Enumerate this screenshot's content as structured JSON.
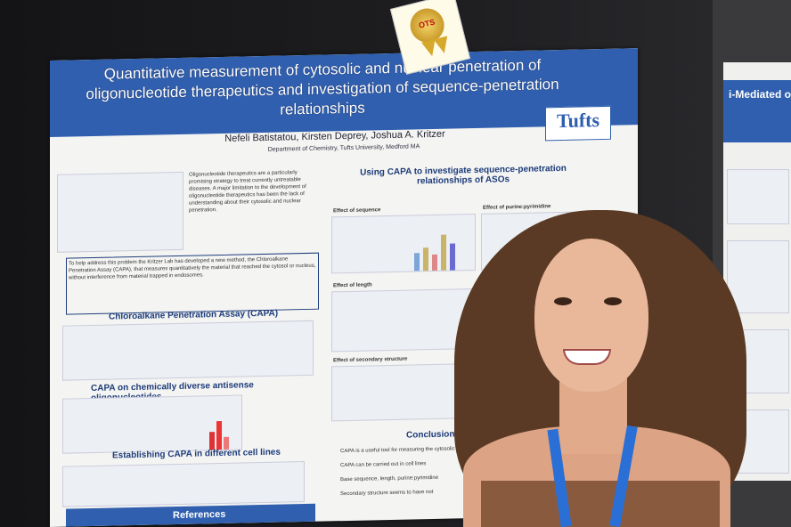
{
  "poster": {
    "title": "Quantitative measurement of cytosolic and nuclear penetration of oligonucleotide therapeutics and investigation of sequence-penetration relationships",
    "authors": "Nefeli Batistatou, Kirsten Deprey, Joshua A. Kritzer",
    "affiliation": "Department of Chemistry, Tufts University, Medford MA",
    "logo": "Tufts",
    "sections": {
      "right_heading": "Using CAPA to investigate sequence-penetration relationships of ASOs",
      "effect_sequence": "Effect of sequence",
      "effect_purine": "Effect of purine:pyrimidine",
      "effect_length": "Effect of length",
      "effect_secondary": "Effect of secondary structure",
      "capa_heading": "Chloroalkane Penetration Assay (CAPA)",
      "chem_heading": "CAPA on chemically diverse antisense oligonucleotides",
      "cell_heading": "Establishing CAPA in different cell lines",
      "conclusions": "Conclusions &",
      "references": "References"
    },
    "intro_text": "Oligonucleotide therapeutics are a particularly promising strategy to treat currently untreatable diseases. A major limitation to the development of oligonucleotide therapeutics has been the lack of understanding about their cytosolic and nuclear penetration.",
    "box_text": "To help address this problem the Kritzer Lab has developed a new method, the Chloroalkane Penetration Assay (CAPA), that measures quantitatively the material that reached the cytosol or nucleus, without interference from material trapped in endosomes.",
    "conclusion_items": [
      "CAPA is a useful tool for measuring the cytosolic",
      "CAPA can be carried out in cell lines",
      "Base sequence, length, purine:pyrimidine",
      "Secondary structure seems to have not"
    ]
  },
  "badge": {
    "text": "OTS"
  },
  "poster2": {
    "title": "i-Mediated of AAV Del"
  }
}
